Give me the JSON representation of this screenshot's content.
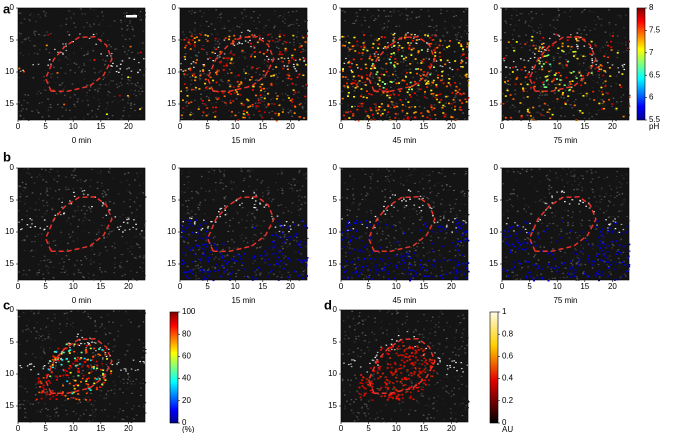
{
  "axes": {
    "xlim": [
      0,
      23
    ],
    "ylim": [
      0,
      17.5
    ],
    "xticks": [
      0,
      5,
      10,
      15,
      20
    ],
    "yticks": [
      0,
      5,
      10,
      15
    ]
  },
  "panels": [
    {
      "letter": "a",
      "captions": [
        "0 min",
        "15 min",
        "45 min",
        "75 min"
      ],
      "colorbar": {
        "lim": [
          5.5,
          8
        ],
        "ticks": [
          5.5,
          6,
          6.5,
          7,
          7.5,
          8
        ],
        "label": "pH"
      }
    },
    {
      "letter": "b",
      "captions": [
        "0 min",
        "15 min",
        "45 min",
        "75 min"
      ]
    },
    {
      "letter": "c",
      "colorbar": {
        "lim": [
          0,
          100
        ],
        "ticks": [
          0,
          20,
          40,
          60,
          80,
          100
        ],
        "label": "(%)"
      }
    },
    {
      "letter": "d",
      "colorbar": {
        "lim": [
          0,
          1
        ],
        "ticks": [
          0,
          0.2,
          0.4,
          0.6,
          0.8,
          1
        ],
        "label": "AU"
      }
    }
  ]
}
